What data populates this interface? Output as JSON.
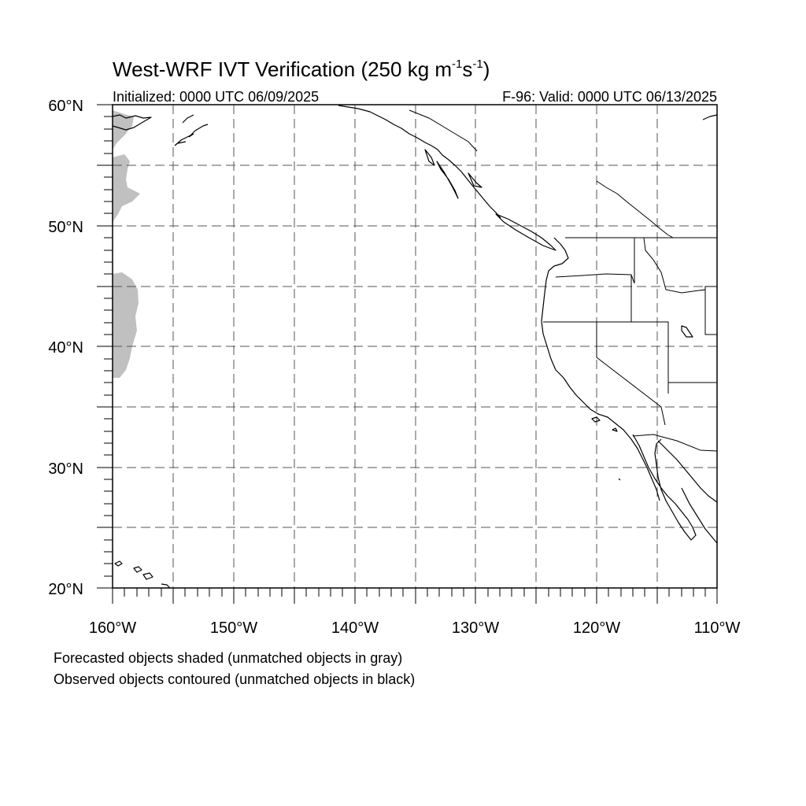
{
  "title": {
    "main": "West-WRF IVT Verification (250 kg m",
    "exp1": "-1",
    "mid": "s",
    "exp2": "-1",
    "close": ")"
  },
  "init_text": "Initialized: 0000 UTC 06/09/2025",
  "valid_text": "F-96: Valid: 0000 UTC 06/13/2025",
  "lat_labels": [
    "20°N",
    "30°N",
    "40°N",
    "50°N",
    "60°N"
  ],
  "lon_labels": [
    "160°W",
    "150°W",
    "140°W",
    "130°W",
    "120°W",
    "110°W"
  ],
  "legend": {
    "line1": "Forecasted objects shaded (unmatched objects in gray)",
    "line2": "Observed objects contoured (unmatched objects in black)"
  },
  "colors": {
    "unmatched_forecast_fill": "#c0c0c0",
    "coastline": "#000000",
    "grid": "#555555"
  }
}
